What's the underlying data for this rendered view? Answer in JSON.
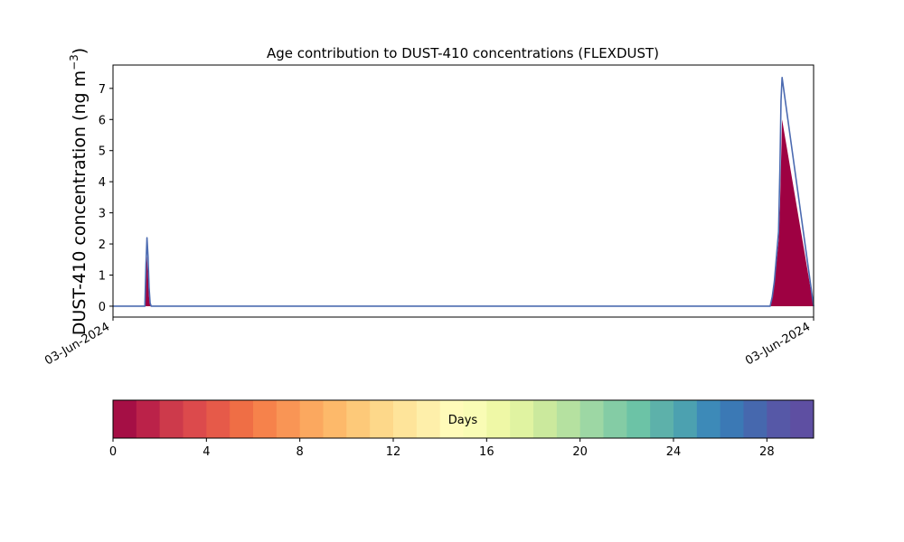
{
  "chart_data": {
    "type": "area",
    "title": "Age contribution to DUST-410 concentrations (FLEXDUST)",
    "ylabel_main": "DUST-410 concentration (ng m",
    "ylabel_sup": "−3",
    "ylabel_close": ")",
    "xlabel": "",
    "x_tick_labels": [
      "03-Jun-2024",
      "03-Jun-2024"
    ],
    "ylim": [
      -0.35,
      7.75
    ],
    "y_ticks": [
      0,
      1,
      2,
      3,
      4,
      5,
      6,
      7
    ],
    "grid": false,
    "x_range": [
      0,
      1
    ],
    "series": [
      {
        "x": [
          0.0,
          0.0455,
          0.047,
          0.0485,
          0.05,
          0.0515,
          0.053,
          0.0545,
          0.2,
          0.5,
          0.8,
          0.938,
          0.941,
          0.944,
          0.947,
          0.95,
          0.952,
          0.9535,
          0.955,
          1.0
        ],
        "total": [
          0,
          0,
          1.3,
          2.2,
          1.6,
          0.6,
          0.1,
          0,
          0,
          0,
          0,
          0,
          0.3,
          0.8,
          1.6,
          2.4,
          4.5,
          6.6,
          7.35,
          0
        ],
        "age_0_1_days": [
          0,
          0,
          1.2,
          1.6,
          1.0,
          0.3,
          0.05,
          0,
          0,
          0,
          0,
          0,
          0.25,
          0.7,
          1.4,
          2.1,
          3.2,
          4.6,
          6.0,
          0
        ]
      }
    ],
    "colorbar": {
      "label": "Days",
      "min": 0,
      "max": 30,
      "ticks": [
        0,
        4,
        8,
        12,
        16,
        20,
        24,
        28
      ],
      "colors": [
        "#a50f45",
        "#bb2249",
        "#cd3a4b",
        "#dc4a4c",
        "#e65a49",
        "#ef6e45",
        "#f6824b",
        "#f99555",
        "#fba85f",
        "#fdb96a",
        "#fdc979",
        "#fdd88a",
        "#fee49a",
        "#feefaa",
        "#fffbb9",
        "#f9fcb5",
        "#eff8a6",
        "#e0f3a1",
        "#cbe99d",
        "#b5e1a0",
        "#9dd7a4",
        "#84cca5",
        "#6cc3a6",
        "#5db1aa",
        "#4ca1b0",
        "#3d8ab8",
        "#3b79b5",
        "#4668ae",
        "#5658a7",
        "#5e4fa2"
      ]
    },
    "colors": {
      "total_line": "#4c6bb1",
      "youngest_fill": "#9e0142"
    }
  }
}
